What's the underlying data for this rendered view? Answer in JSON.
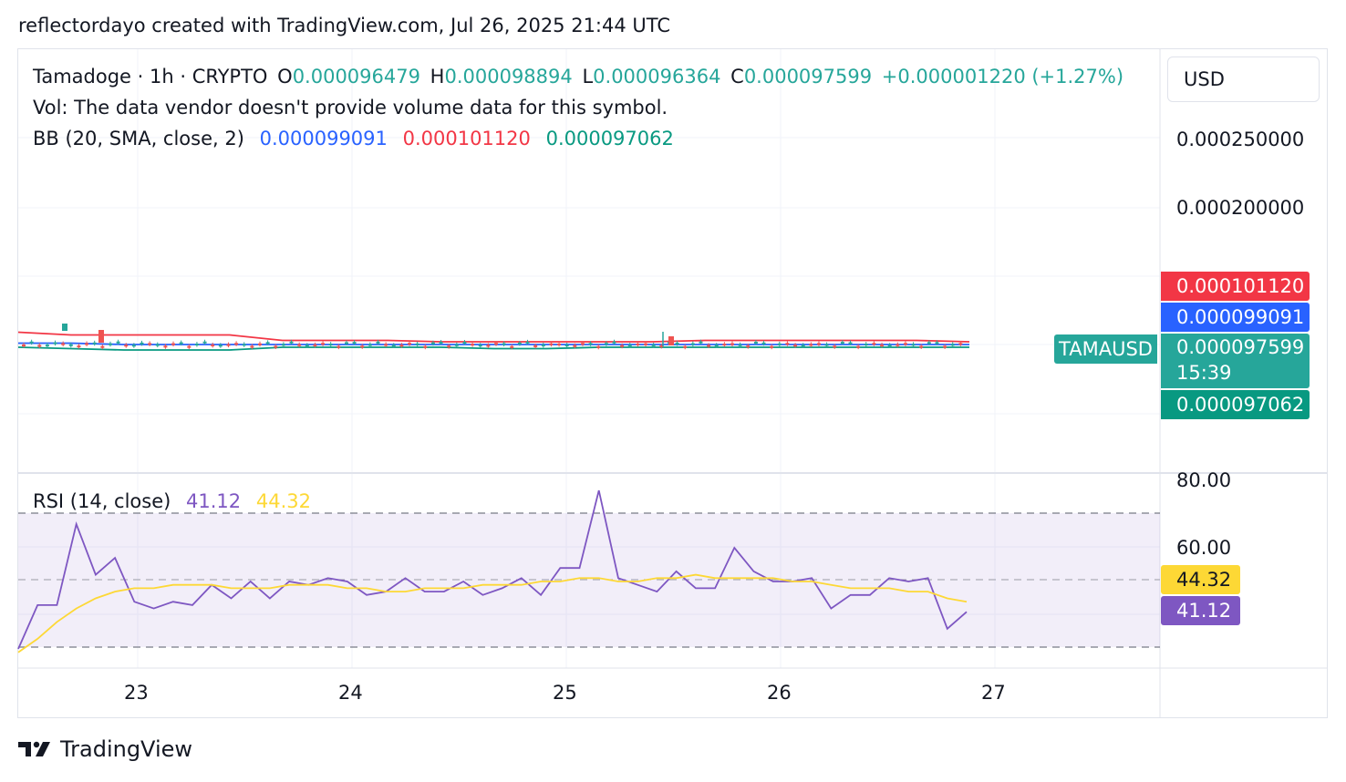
{
  "header": {
    "attribution": "reflectordayo created with TradingView.com, Jul 26, 2025 21:44 UTC"
  },
  "main_legend": {
    "symbol": "Tamadoge · 1h · CRYPTO",
    "open_label": "O",
    "open": "0.000096479",
    "high_label": "H",
    "high": "0.000098894",
    "low_label": "L",
    "low": "0.000096364",
    "close_label": "C",
    "close": "0.000097599",
    "change": "+0.000001220 (+1.27%)",
    "volume_note": "Vol: The data vendor doesn't provide volume data for this symbol.",
    "bb_label": "BB (20, SMA, close, 2)",
    "bb_basis": "0.000099091",
    "bb_upper": "0.000101120",
    "bb_lower": "0.000097062"
  },
  "price_axis": {
    "currency": "USD",
    "ticks": [
      "0.000250000",
      "0.000200000"
    ],
    "tags": {
      "upper": "0.000101120",
      "basis": "0.000099091",
      "last": "0.000097599",
      "countdown": "15:39",
      "lower": "0.000097062",
      "symbol": "TAMAUSD"
    }
  },
  "rsi_legend": {
    "label": "RSI (14, close)",
    "rsi": "41.12",
    "ma": "44.32"
  },
  "rsi_axis": {
    "ticks": [
      "80.00",
      "60.00"
    ],
    "rsi_tag": "41.12",
    "ma_tag": "44.32"
  },
  "time_axis": {
    "ticks": [
      "23",
      "24",
      "25",
      "26",
      "27"
    ]
  },
  "colors": {
    "up": "#26a69a",
    "down": "#ef5350",
    "bb_upper": "#f23645",
    "bb_basis": "#2962ff",
    "bb_lower": "#089981",
    "rsi": "#7e57c2",
    "rsi_ma": "#fdd835",
    "grid": "#f0f3fa"
  },
  "logo": {
    "text": "TradingView"
  },
  "chart_data": [
    {
      "type": "line",
      "title": "Tamadoge · 1h · CRYPTO",
      "xlabel": "",
      "ylabel": "",
      "x_ticks": [
        "23",
        "24",
        "25",
        "26",
        "27"
      ],
      "ylim": [
        9e-05,
        0.000275
      ],
      "series": [
        {
          "name": "BB upper",
          "values": [
            0.000108,
            0.000106,
            0.000106,
            0.000106,
            0.000106,
            0.000102,
            0.000102,
            0.000102,
            0.000101,
            0.000101,
            0.000101,
            0.000101,
            0.000101,
            0.000102,
            0.000102,
            0.000102,
            0.000102,
            0.000102,
            0.000101
          ]
        },
        {
          "name": "BB basis",
          "values": [
            0.0001,
            0.0001,
            9.9e-05,
            9.9e-05,
            9.9e-05,
            9.9e-05,
            9.9e-05,
            9.9e-05,
            9.9e-05,
            9.9e-05,
            9.9e-05,
            9.9e-05,
            9.9e-05,
            9.9e-05,
            9.9e-05,
            9.9e-05,
            9.9e-05,
            9.9e-05,
            9.9e-05
          ]
        },
        {
          "name": "BB lower",
          "values": [
            9.7e-05,
            9.6e-05,
            9.5e-05,
            9.5e-05,
            9.5e-05,
            9.7e-05,
            9.7e-05,
            9.7e-05,
            9.7e-05,
            9.6e-05,
            9.6e-05,
            9.7e-05,
            9.7e-05,
            9.7e-05,
            9.7e-05,
            9.7e-05,
            9.7e-05,
            9.7e-05,
            9.7e-05
          ]
        }
      ]
    },
    {
      "type": "line",
      "title": "RSI (14, close)",
      "xlabel": "",
      "ylabel": "",
      "ylim": [
        20,
        85
      ],
      "bands": [
        30,
        50,
        70
      ],
      "series": [
        {
          "name": "RSI",
          "values": [
            30,
            43,
            43,
            67,
            52,
            57,
            44,
            42,
            44,
            43,
            49,
            45,
            50,
            45,
            50,
            49,
            51,
            50,
            46,
            47,
            51,
            47,
            47,
            50,
            46,
            48,
            51,
            46,
            54,
            54,
            77,
            51,
            49,
            47,
            53,
            48,
            48,
            60,
            53,
            50,
            50,
            51,
            42,
            46,
            46,
            51,
            50,
            51,
            36,
            41
          ]
        },
        {
          "name": "RSI MA",
          "values": [
            29,
            33,
            38,
            42,
            45,
            47,
            48,
            48,
            49,
            49,
            49,
            48,
            48,
            48,
            49,
            49,
            49,
            48,
            48,
            47,
            47,
            48,
            48,
            48,
            49,
            49,
            49,
            50,
            50,
            51,
            51,
            50,
            50,
            51,
            51,
            52,
            51,
            51,
            51,
            51,
            50,
            50,
            49,
            48,
            48,
            48,
            47,
            47,
            45,
            44
          ]
        }
      ]
    }
  ]
}
